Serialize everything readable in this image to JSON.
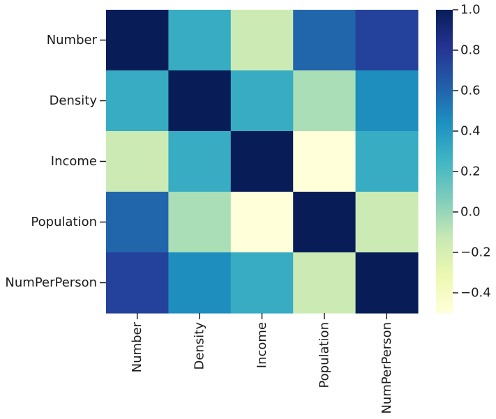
{
  "chart_data": {
    "type": "heatmap",
    "title": "",
    "xlabel": "",
    "ylabel": "",
    "row_labels": [
      "Number",
      "Density",
      "Income",
      "Population",
      "NumPerPerson"
    ],
    "col_labels": [
      "Number",
      "Density",
      "Income",
      "Population",
      "NumPerPerson"
    ],
    "values": [
      [
        1.0,
        0.3,
        -0.15,
        0.6,
        0.75
      ],
      [
        0.3,
        1.0,
        0.3,
        -0.05,
        0.45
      ],
      [
        -0.15,
        0.3,
        1.0,
        -0.5,
        0.3
      ],
      [
        0.6,
        -0.05,
        -0.5,
        1.0,
        -0.15
      ],
      [
        0.75,
        0.45,
        0.3,
        -0.15,
        1.0
      ]
    ],
    "colorbar": {
      "min": -0.5,
      "max": 1.0,
      "ticks": [
        1.0,
        0.8,
        0.6,
        0.4,
        0.2,
        0.0,
        -0.2,
        -0.4
      ],
      "tick_labels": [
        "1.0",
        "0.8",
        "0.6",
        "0.4",
        "0.2",
        "0.0",
        "−0.2",
        "−0.4"
      ],
      "colormap": "YlGnBu",
      "stops": [
        "#ffffd9",
        "#edf8b1",
        "#c7e9b4",
        "#7fcdbb",
        "#41b6c4",
        "#1d91c0",
        "#225ea8",
        "#253494",
        "#081d58"
      ]
    },
    "grid": false
  }
}
